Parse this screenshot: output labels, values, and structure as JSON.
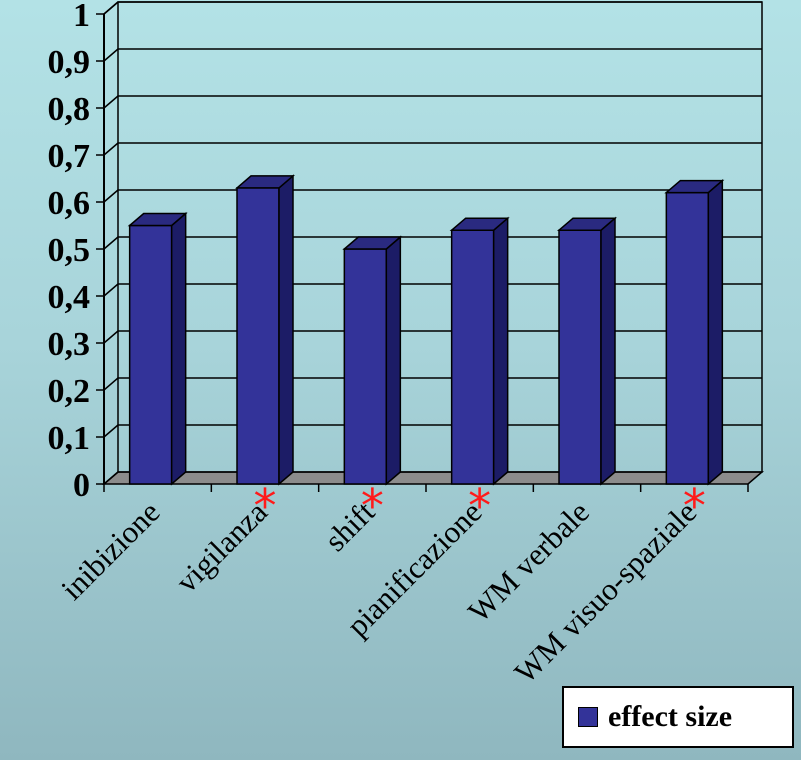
{
  "chart_data": {
    "type": "bar",
    "categories": [
      "inibizione",
      "vigilanza",
      "shift",
      "pianificazione",
      "WM verbale",
      "WM visuo-spaziale"
    ],
    "series": [
      {
        "name": "effect size",
        "values": [
          0.55,
          0.63,
          0.5,
          0.54,
          0.54,
          0.62
        ]
      }
    ],
    "significant": [
      false,
      true,
      true,
      true,
      false,
      true
    ],
    "significance_marker": "*",
    "ylim": [
      0,
      1
    ],
    "yticks": [
      "0",
      "0,1",
      "0,2",
      "0,3",
      "0,4",
      "0,5",
      "0,6",
      "0,7",
      "0,8",
      "0,9",
      "1"
    ],
    "grid": true,
    "legend_position": "bottom-right",
    "bar_color": "#333399",
    "bar_side_color": "#1c1c66",
    "bar_top_color": "#2a2a80",
    "floor_color": "#8c8c8c",
    "marker_color": "#ff1a1a"
  },
  "legend": {
    "label": "effect size"
  }
}
